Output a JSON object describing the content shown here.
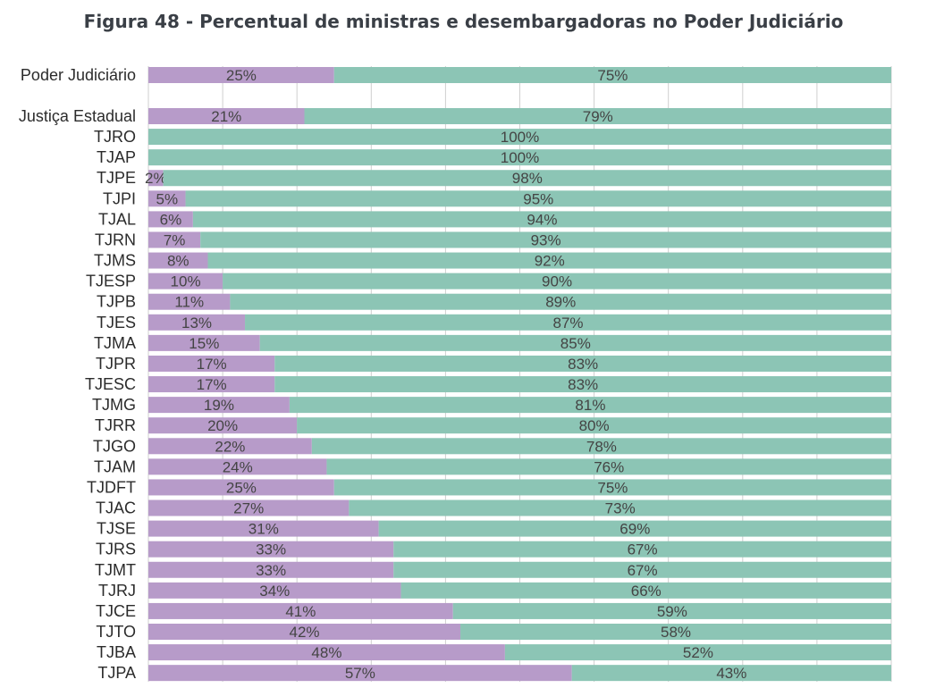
{
  "chart_data": {
    "type": "bar",
    "orientation": "horizontal",
    "stacked": true,
    "title": "Figura 48 - Percentual de ministras e desembargadoras no Poder Judiciário",
    "xlabel": "",
    "ylabel": "",
    "xlim": [
      0,
      100
    ],
    "grid": true,
    "categories": [
      "Poder Judiciário",
      "Justiça Estadual",
      "TJRO",
      "TJAP",
      "TJPE",
      "TJPI",
      "TJAL",
      "TJRN",
      "TJMS",
      "TJESP",
      "TJPB",
      "TJES",
      "TJMA",
      "TJPR",
      "TJESC",
      "TJMG",
      "TJRR",
      "TJGO",
      "TJAM",
      "TJDFT",
      "TJAC",
      "TJSE",
      "TJRS",
      "TJMT",
      "TJRJ",
      "TJCE",
      "TJTO",
      "TJBA",
      "TJPA"
    ],
    "series": [
      {
        "color": "#b79bc9",
        "values": [
          25,
          21,
          0,
          0,
          2,
          5,
          6,
          7,
          8,
          10,
          11,
          13,
          15,
          17,
          17,
          19,
          20,
          22,
          24,
          25,
          27,
          31,
          33,
          33,
          34,
          41,
          42,
          48,
          57
        ],
        "labels": [
          "25%",
          "21%",
          "",
          "",
          "2%",
          "5%",
          "6%",
          "7%",
          "8%",
          "10%",
          "11%",
          "13%",
          "15%",
          "17%",
          "17%",
          "19%",
          "20%",
          "22%",
          "24%",
          "25%",
          "27%",
          "31%",
          "33%",
          "33%",
          "34%",
          "41%",
          "42%",
          "48%",
          "57%"
        ]
      },
      {
        "color": "#8cc5b5",
        "values": [
          75,
          79,
          100,
          100,
          98,
          95,
          94,
          93,
          92,
          90,
          89,
          87,
          85,
          83,
          83,
          81,
          80,
          78,
          76,
          75,
          73,
          69,
          67,
          67,
          66,
          59,
          58,
          52,
          43
        ],
        "labels": [
          "75%",
          "79%",
          "100%",
          "100%",
          "98%",
          "95%",
          "94%",
          "93%",
          "92%",
          "90%",
          "89%",
          "87%",
          "85%",
          "83%",
          "83%",
          "81%",
          "80%",
          "78%",
          "76%",
          "75%",
          "73%",
          "69%",
          "67%",
          "67%",
          "66%",
          "59%",
          "58%",
          "52%",
          "43%"
        ]
      }
    ]
  }
}
